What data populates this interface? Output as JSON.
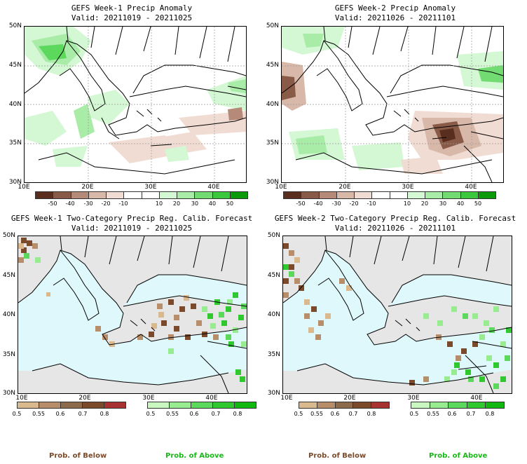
{
  "panels": [
    {
      "title": "GEFS Week-1 Precip Anomaly",
      "valid": "Valid: 20211019 - 20211025"
    },
    {
      "title": "GEFS Week-2 Precip Anomaly",
      "valid": "Valid: 20211026 - 20211101"
    },
    {
      "title": "GEFS Week-1 Two-Category Precip Reg. Calib. Forecast",
      "valid": "Valid: 20211019 - 20211025"
    },
    {
      "title": "GEFS Week-2 Two-Category Precip Reg. Calib. Forecast",
      "valid": "Valid: 20211026 - 20211101"
    }
  ],
  "axes": {
    "lat_labels": [
      "50N",
      "45N",
      "40N",
      "35N",
      "30N"
    ],
    "lon_labels": [
      "10E",
      "20E",
      "30E",
      "40E"
    ]
  },
  "anomaly_colorbar": {
    "ticks": [
      "-50",
      "-40",
      "-30",
      "-20",
      "-10",
      "10",
      "20",
      "30",
      "40",
      "50"
    ],
    "colors": [
      "#5a2e1e",
      "#8a5a48",
      "#b58a78",
      "#d8b8a8",
      "#f0dcd2",
      "#ffffff",
      "#ffffff",
      "#d4f7d4",
      "#a8eca8",
      "#72dc72",
      "#3cc83c",
      "#0a9a0a"
    ]
  },
  "prob_below": {
    "ticks": [
      "0.5",
      "0.55",
      "0.6",
      "0.7",
      "0.8"
    ],
    "colors": [
      "#d9b98d",
      "#b88e6a",
      "#8e6a4c",
      "#7a4a2a",
      "#a83232"
    ],
    "label": "Prob. of Below"
  },
  "prob_above": {
    "ticks": [
      "0.5",
      "0.55",
      "0.6",
      "0.7",
      "0.8"
    ],
    "colors": [
      "#c8f7c0",
      "#98ec90",
      "#5cd85c",
      "#2fc82f",
      "#10b810"
    ],
    "label": "Prob. of Above"
  },
  "colors": {
    "sea": "#dff8fb",
    "land_gray": "#e6e6e6",
    "below_text": "#7a4a2a",
    "above_text": "#18b818"
  }
}
